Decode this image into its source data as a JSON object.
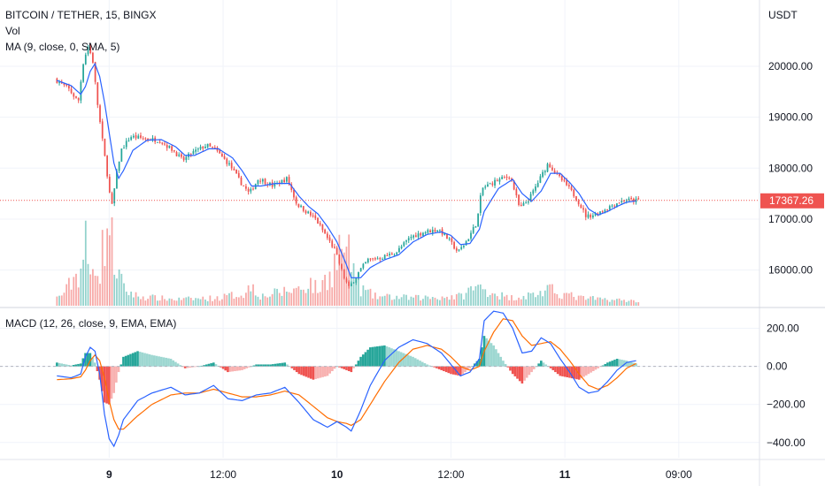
{
  "header": {
    "title": "BITCOIN / TETHER, 15, BINGX",
    "vol_label": "Vol",
    "ma_label": "MA (9, close, 0, SMA, 5)",
    "macd_label": "MACD (12, 26, close, 9, EMA, EMA)",
    "currency": "USDT"
  },
  "price_box": {
    "value": "17367.26",
    "color": "#ef5350"
  },
  "colors": {
    "up": "#26a69a",
    "down": "#ef5350",
    "ma": "#2962ff",
    "macd": "#2962ff",
    "signal": "#ff6d00"
  },
  "chart_data": [
    {
      "type": "candlestick",
      "title": "BITCOIN / TETHER, 15, BINGX",
      "ylabel": "USDT",
      "y_ticks": [
        "20000.00",
        "19000.00",
        "18000.00",
        "17000.00",
        "16000.00"
      ],
      "y_tick_values": [
        20000,
        19000,
        18000,
        17000,
        16000
      ],
      "ylim": [
        15300,
        21300
      ],
      "x_ticks": [
        "9",
        "12:00",
        "10",
        "12:00",
        "11",
        "09:00"
      ],
      "x_tick_positions": [
        11,
        35,
        59,
        83,
        107,
        131
      ],
      "x_ticks_bold": [
        true,
        false,
        true,
        false,
        true,
        false
      ],
      "x_range": [
        -12,
        148
      ],
      "last_price": 17367.26,
      "close_path": [
        [
          0,
          19750
        ],
        [
          3,
          19550
        ],
        [
          5,
          19300
        ],
        [
          6,
          20050
        ],
        [
          7,
          20400
        ],
        [
          8,
          20150
        ],
        [
          9,
          19300
        ],
        [
          10,
          18600
        ],
        [
          11,
          17950
        ],
        [
          12,
          17200
        ],
        [
          13,
          17850
        ],
        [
          14,
          18350
        ],
        [
          16,
          18620
        ],
        [
          19,
          18580
        ],
        [
          22,
          18550
        ],
        [
          25,
          18350
        ],
        [
          27,
          18150
        ],
        [
          29,
          18300
        ],
        [
          32,
          18450
        ],
        [
          34,
          18350
        ],
        [
          37,
          18050
        ],
        [
          39,
          17750
        ],
        [
          41,
          17500
        ],
        [
          43,
          17800
        ],
        [
          46,
          17650
        ],
        [
          49,
          17800
        ],
        [
          51,
          17300
        ],
        [
          53,
          17150
        ],
        [
          55,
          17000
        ],
        [
          57,
          16700
        ],
        [
          59,
          16400
        ],
        [
          61,
          15850
        ],
        [
          62,
          15650
        ],
        [
          64,
          15950
        ],
        [
          66,
          16200
        ],
        [
          69,
          16250
        ],
        [
          72,
          16350
        ],
        [
          75,
          16650
        ],
        [
          78,
          16750
        ],
        [
          81,
          16800
        ],
        [
          83,
          16600
        ],
        [
          85,
          16350
        ],
        [
          87,
          16600
        ],
        [
          89,
          16950
        ],
        [
          90,
          17600
        ],
        [
          93,
          17750
        ],
        [
          96,
          17850
        ],
        [
          98,
          17200
        ],
        [
          100,
          17400
        ],
        [
          102,
          17750
        ],
        [
          104,
          18100
        ],
        [
          106,
          17850
        ],
        [
          108,
          17650
        ],
        [
          110,
          17400
        ],
        [
          112,
          17050
        ],
        [
          114,
          17100
        ],
        [
          116,
          17200
        ],
        [
          118,
          17300
        ],
        [
          120,
          17380
        ],
        [
          122,
          17367
        ]
      ],
      "ma_path": [
        [
          0,
          19720
        ],
        [
          3,
          19620
        ],
        [
          5,
          19450
        ],
        [
          6,
          19600
        ],
        [
          7,
          19900
        ],
        [
          8,
          20050
        ],
        [
          9,
          19800
        ],
        [
          10,
          19300
        ],
        [
          11,
          18700
        ],
        [
          12,
          18100
        ],
        [
          13,
          17800
        ],
        [
          14,
          17950
        ],
        [
          16,
          18350
        ],
        [
          19,
          18550
        ],
        [
          22,
          18560
        ],
        [
          25,
          18420
        ],
        [
          27,
          18250
        ],
        [
          29,
          18250
        ],
        [
          32,
          18380
        ],
        [
          34,
          18380
        ],
        [
          37,
          18200
        ],
        [
          39,
          17950
        ],
        [
          41,
          17650
        ],
        [
          43,
          17650
        ],
        [
          46,
          17700
        ],
        [
          49,
          17700
        ],
        [
          51,
          17450
        ],
        [
          53,
          17250
        ],
        [
          55,
          17100
        ],
        [
          57,
          16850
        ],
        [
          59,
          16550
        ],
        [
          61,
          16100
        ],
        [
          62,
          15850
        ],
        [
          64,
          15850
        ],
        [
          66,
          16050
        ],
        [
          69,
          16200
        ],
        [
          72,
          16300
        ],
        [
          75,
          16550
        ],
        [
          78,
          16700
        ],
        [
          81,
          16750
        ],
        [
          83,
          16680
        ],
        [
          85,
          16500
        ],
        [
          87,
          16520
        ],
        [
          89,
          16800
        ],
        [
          90,
          17150
        ],
        [
          93,
          17600
        ],
        [
          96,
          17780
        ],
        [
          98,
          17500
        ],
        [
          100,
          17350
        ],
        [
          102,
          17550
        ],
        [
          104,
          17900
        ],
        [
          106,
          17900
        ],
        [
          108,
          17720
        ],
        [
          110,
          17500
        ],
        [
          112,
          17200
        ],
        [
          114,
          17080
        ],
        [
          116,
          17150
        ],
        [
          118,
          17250
        ],
        [
          120,
          17330
        ],
        [
          122,
          17360
        ]
      ],
      "volume_profile": [
        [
          0,
          8
        ],
        [
          2,
          18
        ],
        [
          3,
          30
        ],
        [
          5,
          45
        ],
        [
          6,
          80
        ],
        [
          7,
          30
        ],
        [
          8,
          70
        ],
        [
          9,
          40
        ],
        [
          10,
          90
        ],
        [
          11,
          110
        ],
        [
          12,
          60
        ],
        [
          13,
          40
        ],
        [
          14,
          20
        ],
        [
          17,
          10
        ],
        [
          25,
          6
        ],
        [
          34,
          8
        ],
        [
          40,
          15
        ],
        [
          41,
          28
        ],
        [
          43,
          10
        ],
        [
          49,
          18
        ],
        [
          52,
          22
        ],
        [
          53,
          30
        ],
        [
          55,
          18
        ],
        [
          58,
          45
        ],
        [
          60,
          80
        ],
        [
          62,
          55
        ],
        [
          64,
          20
        ],
        [
          67,
          10
        ],
        [
          75,
          8
        ],
        [
          85,
          10
        ],
        [
          88,
          22
        ],
        [
          90,
          20
        ],
        [
          95,
          8
        ],
        [
          100,
          12
        ],
        [
          104,
          18
        ],
        [
          110,
          8
        ],
        [
          122,
          4
        ]
      ]
    },
    {
      "type": "macd",
      "title": "MACD (12, 26, close, 9, EMA, EMA)",
      "y_ticks": [
        "200.00",
        "0.00",
        "−200.00",
        "−400.00"
      ],
      "y_tick_values": [
        200,
        0,
        -200,
        -400
      ],
      "ylim": [
        -480,
        300
      ],
      "macd_path": [
        [
          0,
          -50
        ],
        [
          3,
          -60
        ],
        [
          5,
          -40
        ],
        [
          6,
          50
        ],
        [
          7,
          100
        ],
        [
          8,
          80
        ],
        [
          9,
          -40
        ],
        [
          10,
          -250
        ],
        [
          11,
          -380
        ],
        [
          12,
          -420
        ],
        [
          13,
          -360
        ],
        [
          14,
          -280
        ],
        [
          17,
          -180
        ],
        [
          20,
          -140
        ],
        [
          24,
          -110
        ],
        [
          27,
          -150
        ],
        [
          30,
          -140
        ],
        [
          33,
          -100
        ],
        [
          36,
          -170
        ],
        [
          39,
          -180
        ],
        [
          42,
          -150
        ],
        [
          45,
          -140
        ],
        [
          48,
          -110
        ],
        [
          51,
          -190
        ],
        [
          54,
          -280
        ],
        [
          57,
          -320
        ],
        [
          59,
          -290
        ],
        [
          61,
          -320
        ],
        [
          62,
          -340
        ],
        [
          64,
          -230
        ],
        [
          66,
          -100
        ],
        [
          69,
          30
        ],
        [
          72,
          100
        ],
        [
          75,
          140
        ],
        [
          78,
          120
        ],
        [
          81,
          70
        ],
        [
          83,
          10
        ],
        [
          85,
          -50
        ],
        [
          87,
          -30
        ],
        [
          89,
          40
        ],
        [
          90,
          240
        ],
        [
          92,
          290
        ],
        [
          94,
          280
        ],
        [
          96,
          200
        ],
        [
          98,
          70
        ],
        [
          100,
          80
        ],
        [
          102,
          150
        ],
        [
          104,
          120
        ],
        [
          106,
          40
        ],
        [
          108,
          -30
        ],
        [
          110,
          -110
        ],
        [
          112,
          -140
        ],
        [
          114,
          -130
        ],
        [
          116,
          -80
        ],
        [
          118,
          -20
        ],
        [
          120,
          20
        ],
        [
          122,
          30
        ]
      ],
      "signal_path": [
        [
          0,
          -70
        ],
        [
          3,
          -65
        ],
        [
          5,
          -55
        ],
        [
          6,
          -20
        ],
        [
          7,
          30
        ],
        [
          8,
          60
        ],
        [
          9,
          30
        ],
        [
          10,
          -60
        ],
        [
          11,
          -180
        ],
        [
          12,
          -280
        ],
        [
          13,
          -330
        ],
        [
          14,
          -330
        ],
        [
          17,
          -260
        ],
        [
          20,
          -200
        ],
        [
          24,
          -150
        ],
        [
          27,
          -140
        ],
        [
          30,
          -140
        ],
        [
          33,
          -120
        ],
        [
          36,
          -140
        ],
        [
          39,
          -160
        ],
        [
          42,
          -160
        ],
        [
          45,
          -150
        ],
        [
          48,
          -130
        ],
        [
          51,
          -150
        ],
        [
          54,
          -210
        ],
        [
          57,
          -270
        ],
        [
          59,
          -290
        ],
        [
          61,
          -300
        ],
        [
          62,
          -310
        ],
        [
          64,
          -280
        ],
        [
          66,
          -200
        ],
        [
          69,
          -80
        ],
        [
          72,
          20
        ],
        [
          75,
          90
        ],
        [
          78,
          110
        ],
        [
          81,
          90
        ],
        [
          83,
          50
        ],
        [
          85,
          0
        ],
        [
          87,
          -20
        ],
        [
          89,
          0
        ],
        [
          90,
          80
        ],
        [
          92,
          180
        ],
        [
          94,
          250
        ],
        [
          96,
          240
        ],
        [
          98,
          160
        ],
        [
          100,
          110
        ],
        [
          102,
          120
        ],
        [
          104,
          130
        ],
        [
          106,
          90
        ],
        [
          108,
          30
        ],
        [
          110,
          -40
        ],
        [
          112,
          -100
        ],
        [
          114,
          -120
        ],
        [
          116,
          -100
        ],
        [
          118,
          -60
        ],
        [
          120,
          -10
        ],
        [
          122,
          15
        ]
      ]
    }
  ]
}
